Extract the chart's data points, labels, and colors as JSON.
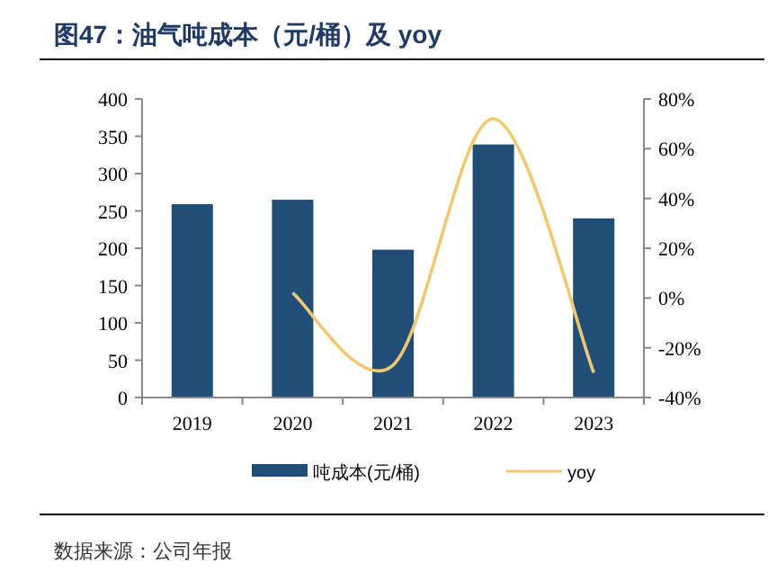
{
  "chart_data": {
    "type": "bar",
    "title": "图47：油气吨成本（元/桶）及 yoy",
    "categories": [
      "2019",
      "2020",
      "2021",
      "2022",
      "2023"
    ],
    "series": [
      {
        "name": "吨成本(元/桶)",
        "color": "#1f4e79",
        "values": [
          259,
          265,
          198,
          339,
          240
        ]
      },
      {
        "name": "yoy",
        "type": "line",
        "axis": "y2",
        "color": "#f2c76e",
        "values": [
          null,
          2,
          -27,
          72,
          -30
        ]
      }
    ],
    "ylim": [
      0,
      400
    ],
    "yticks": [
      0,
      50,
      100,
      150,
      200,
      250,
      300,
      350,
      400
    ],
    "y2lim": [
      -40,
      80
    ],
    "y2ticks": [
      {
        "value": -40,
        "label": "-40%"
      },
      {
        "value": -20,
        "label": "-20%"
      },
      {
        "value": 0,
        "label": "0%"
      },
      {
        "value": 20,
        "label": "20%"
      },
      {
        "value": 40,
        "label": "40%"
      },
      {
        "value": 60,
        "label": "60%"
      },
      {
        "value": 80,
        "label": "80%"
      }
    ],
    "grid": false,
    "legend": "bottom",
    "annotations": [
      "数据来源：公司年报"
    ]
  }
}
